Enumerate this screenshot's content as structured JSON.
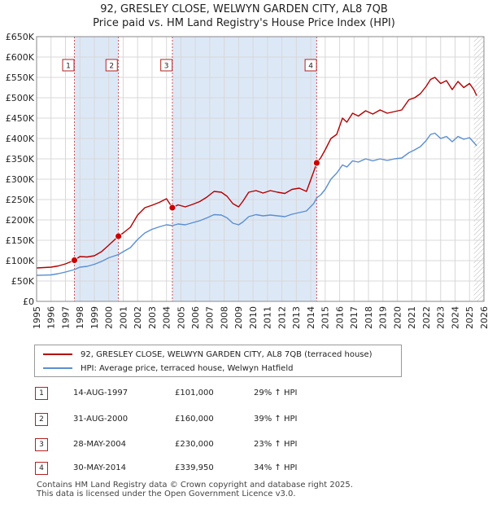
{
  "header": {
    "title_line1": "92, GRESLEY CLOSE, WELWYN GARDEN CITY, AL8 7QB",
    "title_line2": "Price paid vs. HM Land Registry's House Price Index (HPI)"
  },
  "colors": {
    "price_line": "#b30000",
    "hpi_line": "#5b8fd0",
    "shade": "#dde8f7",
    "marker": "#cc0000",
    "vline": "#d05050",
    "grid": "#d8d8d8"
  },
  "chart_data": {
    "type": "line",
    "title": "92, GRESLEY CLOSE, WELWYN GARDEN CITY, AL8 7QB",
    "subtitle": "Price paid vs. HM Land Registry's House Price Index (HPI)",
    "xlabel": "",
    "ylabel": "",
    "xlim": [
      1995,
      2026
    ],
    "ylim": [
      0,
      650000
    ],
    "y_ticks": [
      0,
      50000,
      100000,
      150000,
      200000,
      250000,
      300000,
      350000,
      400000,
      450000,
      500000,
      550000,
      600000,
      650000
    ],
    "y_tick_labels": [
      "£0",
      "£50K",
      "£100K",
      "£150K",
      "£200K",
      "£250K",
      "£300K",
      "£350K",
      "£400K",
      "£450K",
      "£500K",
      "£550K",
      "£600K",
      "£650K"
    ],
    "x_ticks": [
      1995,
      1996,
      1997,
      1998,
      1999,
      2000,
      2001,
      2002,
      2003,
      2004,
      2005,
      2006,
      2007,
      2008,
      2009,
      2010,
      2011,
      2012,
      2013,
      2014,
      2015,
      2016,
      2017,
      2018,
      2019,
      2020,
      2021,
      2022,
      2023,
      2024,
      2025,
      2026
    ],
    "x_tick_labels": [
      "1995",
      "1996",
      "1997",
      "1998",
      "1999",
      "2000",
      "2001",
      "2002",
      "2003",
      "2004",
      "2005",
      "2006",
      "2007",
      "2008",
      "2009",
      "2010",
      "2011",
      "2012",
      "2013",
      "2014",
      "2015",
      "2016",
      "2017",
      "2018",
      "2019",
      "2020",
      "2021",
      "2022",
      "2023",
      "2024",
      "2025",
      "2026"
    ],
    "shaded_spans": [
      [
        1997.62,
        2000.67
      ],
      [
        2004.41,
        2014.41
      ]
    ],
    "hatched_from": 2025.3,
    "series": [
      {
        "name": "92, GRESLEY CLOSE, WELWYN GARDEN CITY, AL8 7QB (terraced house)",
        "x": [
          1995.0,
          1995.5,
          1996.0,
          1996.5,
          1997.0,
          1997.62,
          1998.0,
          1998.5,
          1999.0,
          1999.5,
          2000.0,
          2000.67,
          2001.0,
          2001.5,
          2002.0,
          2002.5,
          2003.0,
          2003.5,
          2004.0,
          2004.41,
          2004.8,
          2005.3,
          2005.8,
          2006.3,
          2006.8,
          2007.3,
          2007.8,
          2008.2,
          2008.6,
          2009.0,
          2009.3,
          2009.7,
          2010.2,
          2010.7,
          2011.2,
          2011.7,
          2012.2,
          2012.7,
          2013.2,
          2013.7,
          2014.2,
          2014.41,
          2014.7,
          2015.0,
          2015.4,
          2015.8,
          2016.2,
          2016.5,
          2016.9,
          2017.3,
          2017.8,
          2018.3,
          2018.8,
          2019.3,
          2019.8,
          2020.3,
          2020.8,
          2021.2,
          2021.6,
          2022.0,
          2022.3,
          2022.6,
          2023.0,
          2023.4,
          2023.8,
          2024.2,
          2024.6,
          2025.0,
          2025.3,
          2025.5
        ],
        "values": [
          82000,
          83000,
          84000,
          87000,
          92000,
          101000,
          110000,
          109000,
          112000,
          122000,
          138000,
          160000,
          168000,
          182000,
          212000,
          230000,
          236000,
          243000,
          252000,
          230000,
          237000,
          232000,
          238000,
          245000,
          256000,
          270000,
          268000,
          258000,
          240000,
          232000,
          246000,
          268000,
          272000,
          266000,
          272000,
          268000,
          265000,
          275000,
          278000,
          270000,
          318000,
          339950,
          353000,
          372000,
          400000,
          410000,
          450000,
          440000,
          462000,
          455000,
          468000,
          460000,
          470000,
          462000,
          466000,
          470000,
          495000,
          500000,
          510000,
          528000,
          545000,
          550000,
          535000,
          542000,
          520000,
          540000,
          525000,
          535000,
          520000,
          505000
        ],
        "color": "#b30000"
      },
      {
        "name": "HPI: Average price, terraced house, Welwyn Hatfield",
        "x": [
          1995.0,
          1995.5,
          1996.0,
          1996.5,
          1997.0,
          1997.62,
          1998.0,
          1998.5,
          1999.0,
          1999.5,
          2000.0,
          2000.67,
          2001.0,
          2001.5,
          2002.0,
          2002.5,
          2003.0,
          2003.5,
          2004.0,
          2004.41,
          2004.8,
          2005.3,
          2005.8,
          2006.3,
          2006.8,
          2007.3,
          2007.8,
          2008.2,
          2008.6,
          2009.0,
          2009.3,
          2009.7,
          2010.2,
          2010.7,
          2011.2,
          2011.7,
          2012.2,
          2012.7,
          2013.2,
          2013.7,
          2014.2,
          2014.41,
          2014.7,
          2015.0,
          2015.4,
          2015.8,
          2016.2,
          2016.5,
          2016.9,
          2017.3,
          2017.8,
          2018.3,
          2018.8,
          2019.3,
          2019.8,
          2020.3,
          2020.8,
          2021.2,
          2021.6,
          2022.0,
          2022.3,
          2022.6,
          2023.0,
          2023.4,
          2023.8,
          2024.2,
          2024.6,
          2025.0,
          2025.3,
          2025.5
        ],
        "values": [
          64000,
          64500,
          65000,
          68000,
          72000,
          78000,
          84000,
          86000,
          91000,
          98000,
          107000,
          115000,
          122000,
          132000,
          152000,
          168000,
          177000,
          183000,
          188000,
          186000,
          190000,
          188000,
          193000,
          198000,
          205000,
          213000,
          212000,
          205000,
          192000,
          188000,
          195000,
          208000,
          213000,
          210000,
          212000,
          210000,
          208000,
          214000,
          218000,
          222000,
          240000,
          254000,
          262000,
          275000,
          300000,
          315000,
          335000,
          330000,
          345000,
          342000,
          350000,
          345000,
          350000,
          346000,
          350000,
          352000,
          365000,
          372000,
          380000,
          395000,
          410000,
          413000,
          400000,
          405000,
          392000,
          405000,
          398000,
          402000,
          390000,
          382000
        ],
        "color": "#5b8fd0"
      }
    ],
    "transactions": [
      {
        "num": "1",
        "x": 1997.62,
        "value": 101000,
        "label_x": 1997.2,
        "date": "14-AUG-1997",
        "price": "£101,000",
        "hpi": "29% ↑ HPI"
      },
      {
        "num": "2",
        "x": 2000.67,
        "value": 160000,
        "label_x": 2000.2,
        "date": "31-AUG-2000",
        "price": "£160,000",
        "hpi": "39% ↑ HPI"
      },
      {
        "num": "3",
        "x": 2004.41,
        "value": 230000,
        "label_x": 2004.0,
        "date": "28-MAY-2004",
        "price": "£230,000",
        "hpi": "23% ↑ HPI"
      },
      {
        "num": "4",
        "x": 2014.41,
        "value": 339950,
        "label_x": 2014.0,
        "date": "30-MAY-2014",
        "price": "£339,950",
        "hpi": "34% ↑ HPI"
      }
    ]
  },
  "legend": {
    "series1_label": "92, GRESLEY CLOSE, WELWYN GARDEN CITY, AL8 7QB (terraced house)",
    "series2_label": "HPI: Average price, terraced house, Welwyn Hatfield"
  },
  "footer": {
    "line1": "Contains HM Land Registry data © Crown copyright and database right 2025.",
    "line2": "This data is licensed under the Open Government Licence v3.0."
  }
}
